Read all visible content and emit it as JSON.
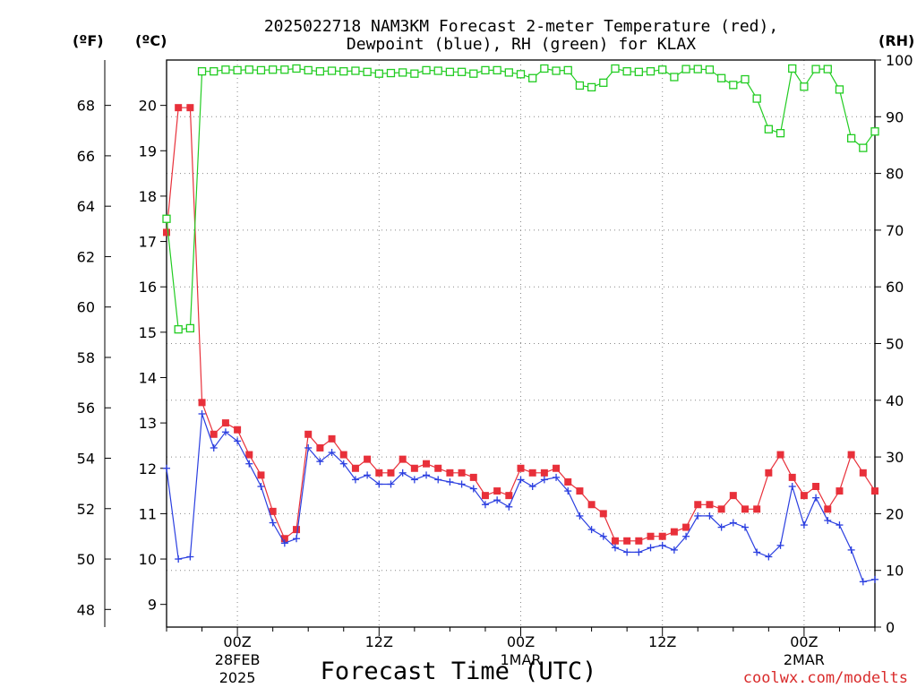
{
  "chart_data": {
    "type": "line",
    "title_line1": "2025022718 NAM3KM Forecast 2-meter Temperature (red),",
    "title_line2": "Dewpoint (blue), RH (green) for KLAX",
    "xlabel": "Forecast Time (UTC)",
    "credit": "coolwx.com/modelts",
    "left_unit_f": "(ºF)",
    "left_unit_c": "(ºC)",
    "right_unit": "(RH)",
    "ylim_c": [
      8.5,
      21
    ],
    "ylim_rh": [
      0,
      100
    ],
    "ylim_f": [
      47.3,
      69.8
    ],
    "celsius_ticks": [
      9,
      10,
      11,
      12,
      13,
      14,
      15,
      16,
      17,
      18,
      19,
      20
    ],
    "fahrenheit_ticks": [
      48,
      50,
      52,
      54,
      56,
      58,
      60,
      62,
      64,
      66,
      68
    ],
    "rh_ticks": [
      0,
      10,
      20,
      30,
      40,
      50,
      60,
      70,
      80,
      90,
      100
    ],
    "x_hours_range": [
      -6,
      54
    ],
    "x_ticks": [
      {
        "hour": 0,
        "line1": "00Z",
        "line2": "28FEB",
        "line3": "2025"
      },
      {
        "hour": 12,
        "line1": "12Z",
        "line2": "",
        "line3": ""
      },
      {
        "hour": 24,
        "line1": "00Z",
        "line2": "1MAR",
        "line3": ""
      },
      {
        "hour": 36,
        "line1": "12Z",
        "line2": "",
        "line3": ""
      },
      {
        "hour": 48,
        "line1": "00Z",
        "line2": "2MAR",
        "line3": ""
      }
    ],
    "grid": true,
    "series": [
      {
        "name": "Temperature (red)",
        "axis": "celsius",
        "color": "#e8303a",
        "marker": "filled-square",
        "x": [
          -6,
          -5,
          -4,
          -3,
          -2,
          -1,
          0,
          1,
          2,
          3,
          4,
          5,
          6,
          7,
          8,
          9,
          10,
          11,
          12,
          13,
          14,
          15,
          16,
          17,
          18,
          19,
          20,
          21,
          22,
          23,
          24,
          25,
          26,
          27,
          28,
          29,
          30,
          31,
          32,
          33,
          34,
          35,
          36,
          37,
          38,
          39,
          40,
          41,
          42,
          43,
          44,
          45,
          46,
          47,
          48,
          49,
          50,
          51,
          52,
          53,
          54
        ],
        "values": [
          17.2,
          19.95,
          19.95,
          13.45,
          12.75,
          13.0,
          12.85,
          12.3,
          11.85,
          11.05,
          10.45,
          10.65,
          12.75,
          12.45,
          12.65,
          12.3,
          12.0,
          12.2,
          11.9,
          11.9,
          12.2,
          12.0,
          12.1,
          12.0,
          11.9,
          11.9,
          11.8,
          11.4,
          11.5,
          11.4,
          12.0,
          11.9,
          11.9,
          12.0,
          11.7,
          11.5,
          11.2,
          11.0,
          10.4,
          10.4,
          10.4,
          10.5,
          10.5,
          10.6,
          10.7,
          11.2,
          11.2,
          11.1,
          11.4,
          11.1,
          11.1,
          11.9,
          12.3,
          11.8,
          11.4,
          11.6,
          11.1,
          11.5,
          12.3,
          11.9,
          11.5
        ]
      },
      {
        "name": "Dewpoint (blue)",
        "axis": "celsius",
        "color": "#2b3fe0",
        "marker": "plus",
        "x": [
          -6,
          -5,
          -4,
          -3,
          -2,
          -1,
          0,
          1,
          2,
          3,
          4,
          5,
          6,
          7,
          8,
          9,
          10,
          11,
          12,
          13,
          14,
          15,
          16,
          17,
          18,
          19,
          20,
          21,
          22,
          23,
          24,
          25,
          26,
          27,
          28,
          29,
          30,
          31,
          32,
          33,
          34,
          35,
          36,
          37,
          38,
          39,
          40,
          41,
          42,
          43,
          44,
          45,
          46,
          47,
          48,
          49,
          50,
          51,
          52,
          53,
          54
        ],
        "values": [
          12.0,
          10.0,
          10.05,
          13.2,
          12.45,
          12.8,
          12.6,
          12.1,
          11.6,
          10.8,
          10.35,
          10.45,
          12.45,
          12.15,
          12.35,
          12.1,
          11.75,
          11.85,
          11.65,
          11.65,
          11.9,
          11.75,
          11.85,
          11.75,
          11.7,
          11.65,
          11.55,
          11.2,
          11.3,
          11.15,
          11.75,
          11.6,
          11.75,
          11.8,
          11.5,
          10.95,
          10.65,
          10.5,
          10.25,
          10.15,
          10.15,
          10.25,
          10.3,
          10.2,
          10.5,
          10.95,
          10.95,
          10.7,
          10.8,
          10.7,
          10.15,
          10.05,
          10.3,
          11.6,
          10.75,
          11.35,
          10.85,
          10.75,
          10.2,
          9.5,
          9.55
        ]
      },
      {
        "name": "RH (green)",
        "axis": "rh",
        "color": "#22cc22",
        "marker": "open-square",
        "x": [
          -6,
          -5,
          -4,
          -3,
          -2,
          -1,
          0,
          1,
          2,
          3,
          4,
          5,
          6,
          7,
          8,
          9,
          10,
          11,
          12,
          13,
          14,
          15,
          16,
          17,
          18,
          19,
          20,
          21,
          22,
          23,
          24,
          25,
          26,
          27,
          28,
          29,
          30,
          31,
          32,
          33,
          34,
          35,
          36,
          37,
          38,
          39,
          40,
          41,
          42,
          43,
          44,
          45,
          46,
          47,
          48,
          49,
          50,
          51,
          52,
          53,
          54
        ],
        "values": [
          72,
          52.5,
          52.7,
          98,
          98,
          98.3,
          98.2,
          98.3,
          98.2,
          98.3,
          98.3,
          98.5,
          98.2,
          98,
          98.1,
          98,
          98.1,
          97.9,
          97.6,
          97.7,
          97.8,
          97.6,
          98.2,
          98.1,
          97.9,
          97.9,
          97.6,
          98.2,
          98.2,
          97.8,
          97.5,
          96.8,
          98.5,
          98.1,
          98.2,
          95.5,
          95.2,
          96,
          98.5,
          98,
          97.9,
          98,
          98.3,
          97,
          98.4,
          98.4,
          98.3,
          96.8,
          95.6,
          96.6,
          93.2,
          87.8,
          87.1,
          98.5,
          95.3,
          98.4,
          98.4,
          94.8,
          86.2,
          84.5,
          87.4
        ]
      }
    ]
  }
}
